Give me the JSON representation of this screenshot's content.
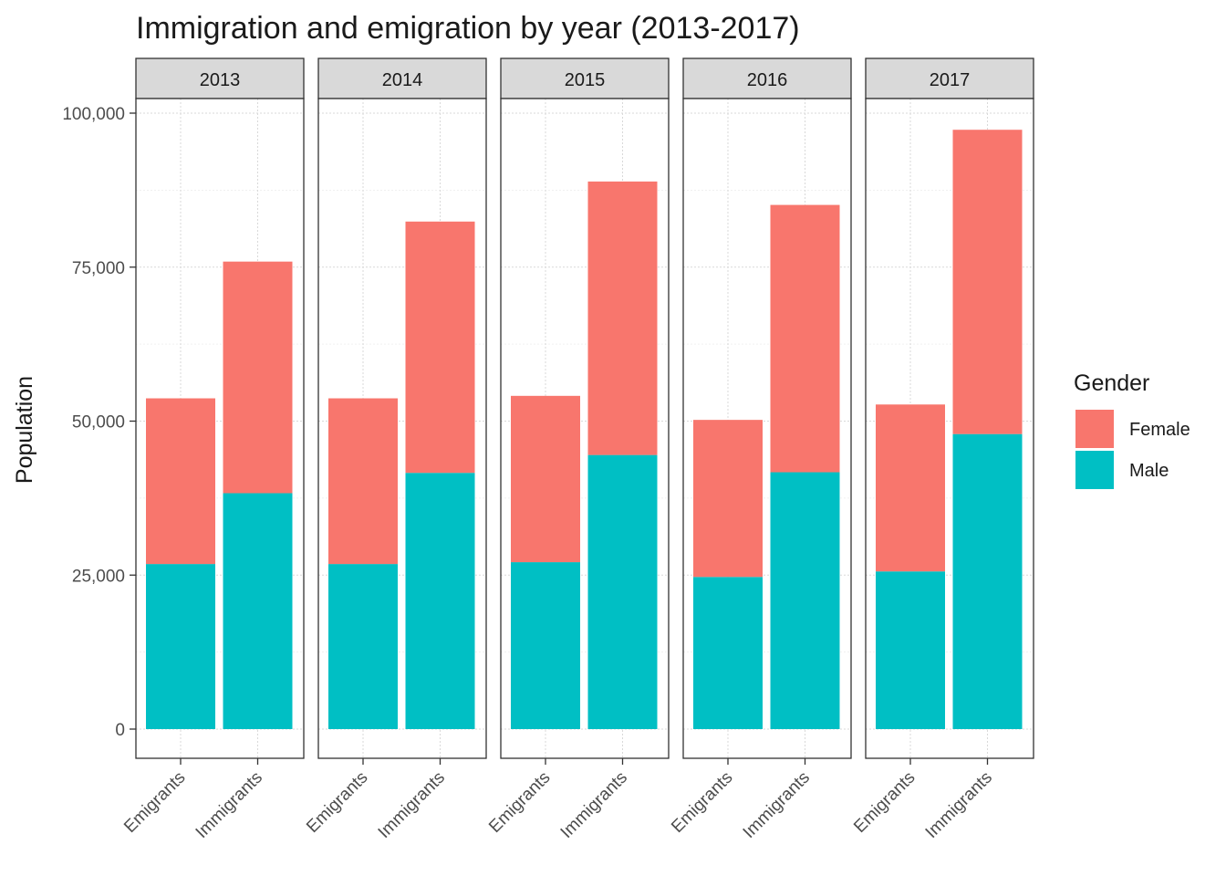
{
  "chart_data": {
    "type": "bar",
    "stacked": true,
    "faceted_by": "year",
    "title": "Immigration and emigration by year (2013-2017)",
    "xlabel": "",
    "ylabel": "Population",
    "ylim": [
      0,
      100000
    ],
    "yticks": [
      0,
      25000,
      50000,
      75000,
      100000
    ],
    "ytick_labels": [
      "0",
      "25,000",
      "50,000",
      "75,000",
      "100,000"
    ],
    "grid": true,
    "legend": {
      "title": "Gender",
      "placement": "right"
    },
    "categories": [
      "Emigrants",
      "Immigrants"
    ],
    "facets": [
      {
        "label": "2013",
        "series": [
          {
            "name": "Male",
            "values": [
              26800,
              38300
            ]
          },
          {
            "name": "Female",
            "values": [
              26900,
              37600
            ]
          }
        ]
      },
      {
        "label": "2014",
        "series": [
          {
            "name": "Male",
            "values": [
              26800,
              41600
            ]
          },
          {
            "name": "Female",
            "values": [
              26900,
              40800
            ]
          }
        ]
      },
      {
        "label": "2015",
        "series": [
          {
            "name": "Male",
            "values": [
              27100,
              44500
            ]
          },
          {
            "name": "Female",
            "values": [
              27000,
              44400
            ]
          }
        ]
      },
      {
        "label": "2016",
        "series": [
          {
            "name": "Male",
            "values": [
              24700,
              41700
            ]
          },
          {
            "name": "Female",
            "values": [
              25500,
              43400
            ]
          }
        ]
      },
      {
        "label": "2017",
        "series": [
          {
            "name": "Male",
            "values": [
              25600,
              47900
            ]
          },
          {
            "name": "Female",
            "values": [
              27100,
              49400
            ]
          }
        ]
      }
    ],
    "colors": {
      "Female": "#F8766D",
      "Male": "#00BFC4"
    }
  }
}
